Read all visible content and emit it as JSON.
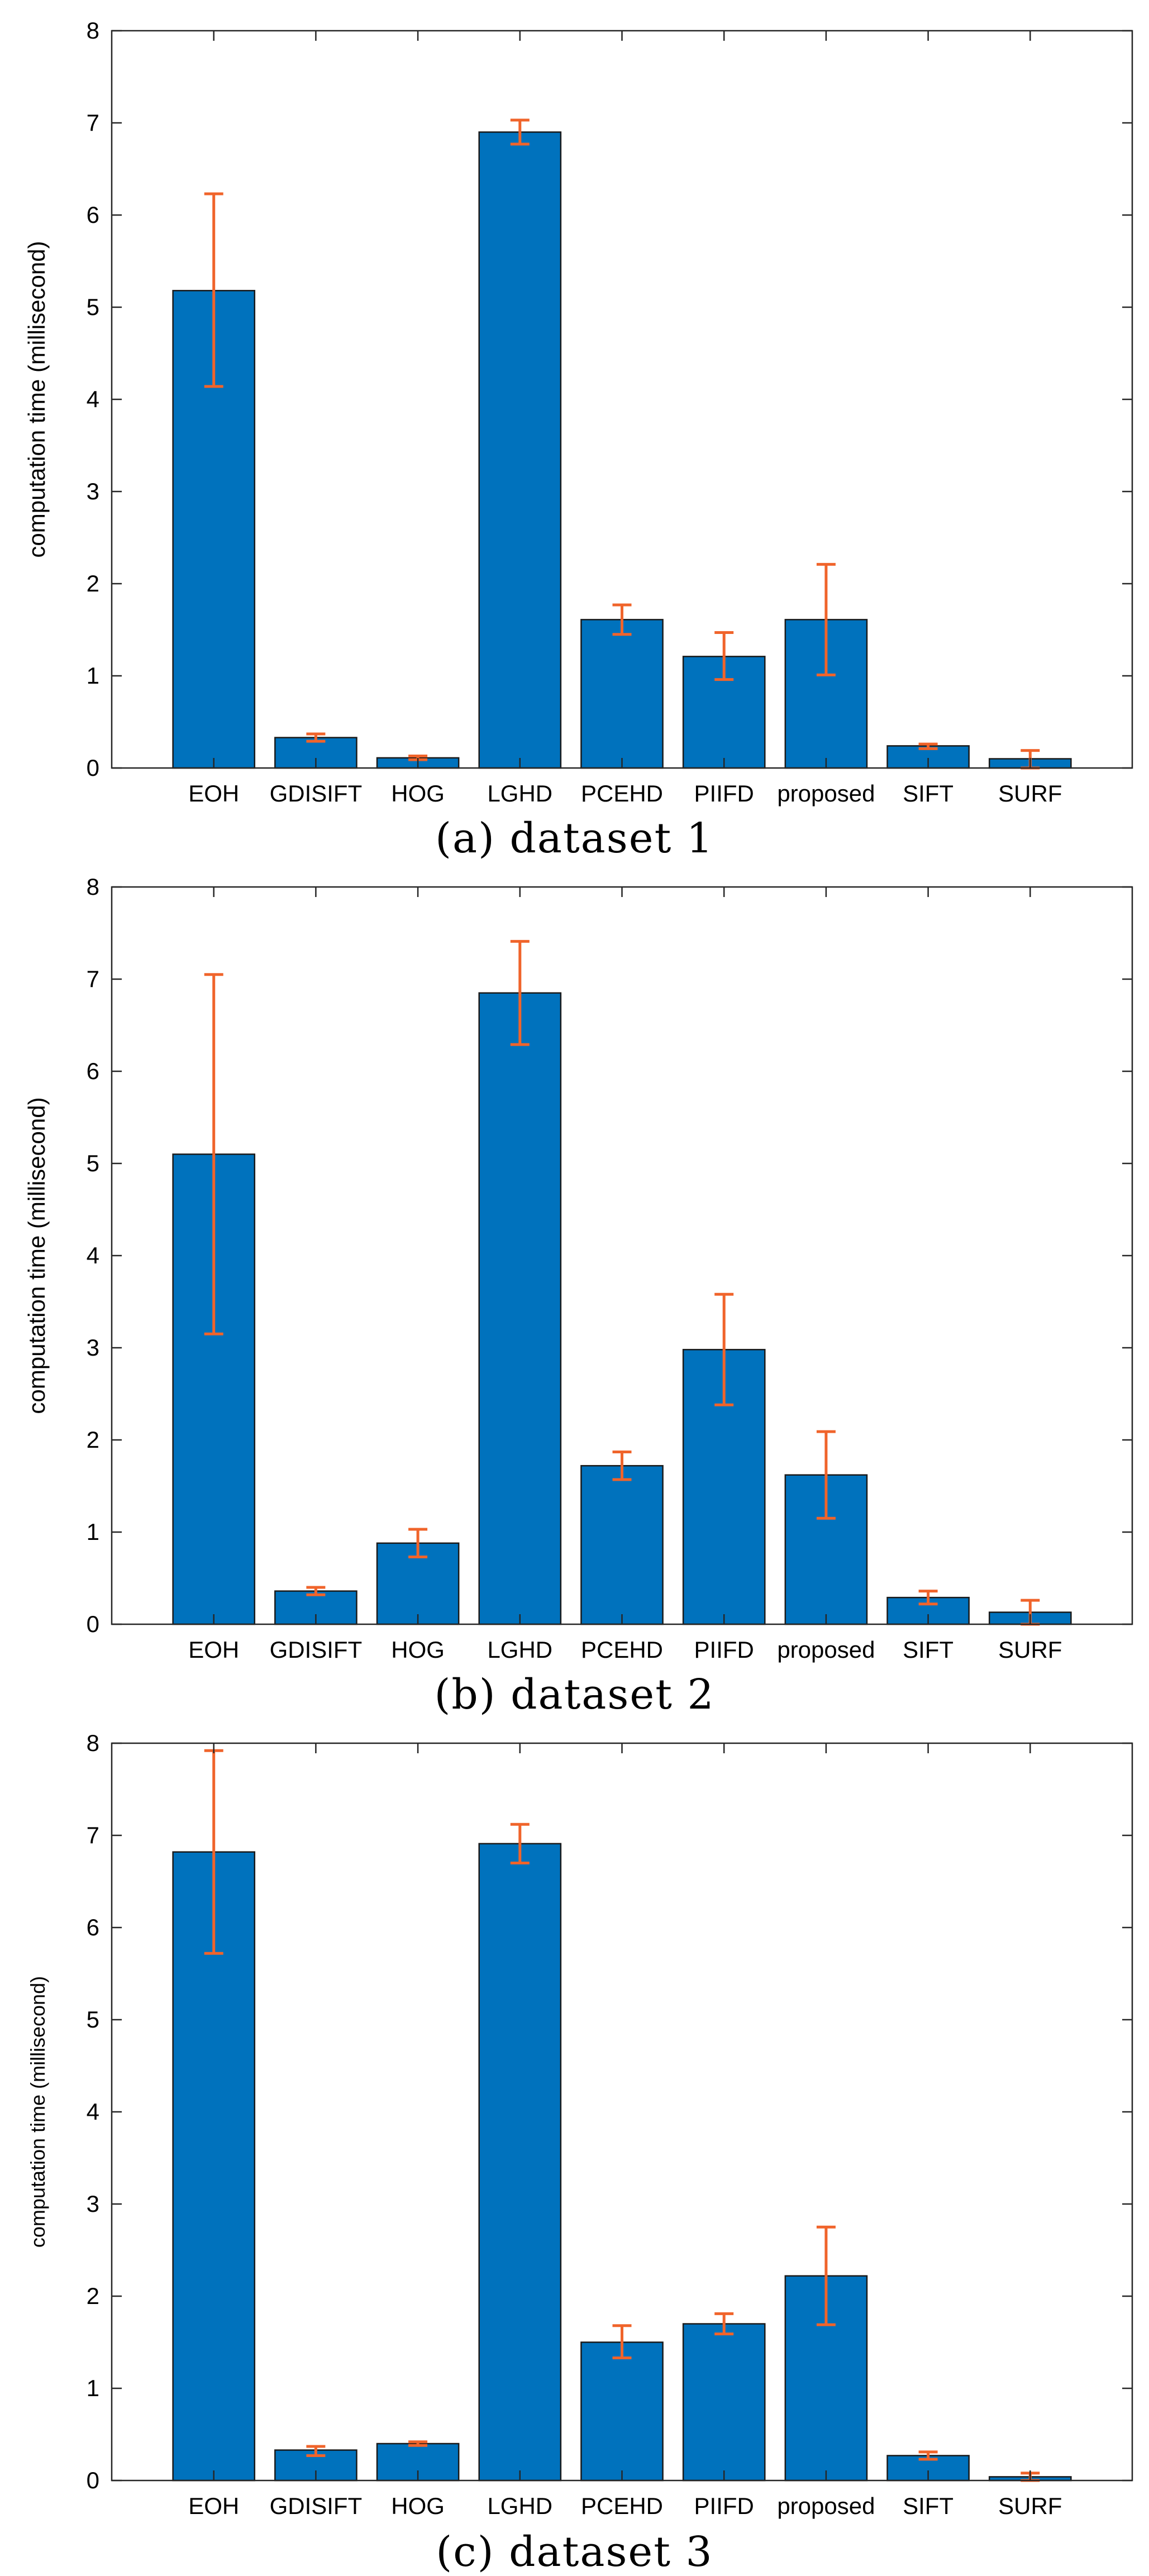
{
  "colors": {
    "bar": "#0072bd",
    "bar_edge": "#1a1a1a",
    "error": "#f0642b",
    "axis": "#262626"
  },
  "chart_data": [
    {
      "type": "bar",
      "title": "",
      "caption": "(a) dataset 1",
      "xlabel": "",
      "ylabel": "computation time (millisecond)",
      "ylim": [
        0,
        8
      ],
      "yticks": [
        0,
        1,
        2,
        3,
        4,
        5,
        6,
        7,
        8
      ],
      "grid": false,
      "categories": [
        "EOH",
        "GDISIFT",
        "HOG",
        "LGHD",
        "PCEHD",
        "PIIFD",
        "proposed",
        "SIFT",
        "SURF"
      ],
      "values": [
        5.18,
        0.33,
        0.11,
        6.9,
        1.61,
        1.21,
        1.61,
        0.24,
        0.1
      ],
      "error_low": [
        4.14,
        0.29,
        0.09,
        6.77,
        1.45,
        0.96,
        1.01,
        0.21,
        0.0
      ],
      "error_high": [
        6.23,
        0.37,
        0.13,
        7.03,
        1.77,
        1.47,
        2.21,
        0.26,
        0.19
      ]
    },
    {
      "type": "bar",
      "title": "",
      "caption": "(b) dataset 2",
      "xlabel": "",
      "ylabel": "computation time (millisecond)",
      "ylim": [
        0,
        8
      ],
      "yticks": [
        0,
        1,
        2,
        3,
        4,
        5,
        6,
        7,
        8
      ],
      "grid": false,
      "categories": [
        "EOH",
        "GDISIFT",
        "HOG",
        "LGHD",
        "PCEHD",
        "PIIFD",
        "proposed",
        "SIFT",
        "SURF"
      ],
      "values": [
        5.1,
        0.36,
        0.88,
        6.85,
        1.72,
        2.98,
        1.62,
        0.29,
        0.13
      ],
      "error_low": [
        3.15,
        0.32,
        0.73,
        6.29,
        1.57,
        2.38,
        1.15,
        0.22,
        0.0
      ],
      "error_high": [
        7.05,
        0.4,
        1.03,
        7.41,
        1.87,
        3.58,
        2.09,
        0.36,
        0.26
      ]
    },
    {
      "type": "bar",
      "title": "",
      "caption": "(c) dataset 3",
      "xlabel": "",
      "ylabel": "computation time (millisecond)",
      "ylim": [
        0,
        8
      ],
      "yticks": [
        0,
        1,
        2,
        3,
        4,
        5,
        6,
        7,
        8
      ],
      "grid": false,
      "categories": [
        "EOH",
        "GDISIFT",
        "HOG",
        "LGHD",
        "PCEHD",
        "PIIFD",
        "proposed",
        "SIFT",
        "SURF"
      ],
      "values": [
        6.82,
        0.33,
        0.4,
        6.91,
        1.5,
        1.7,
        2.22,
        0.27,
        0.04
      ],
      "error_low": [
        5.72,
        0.27,
        0.38,
        6.7,
        1.33,
        1.59,
        1.69,
        0.23,
        0.0
      ],
      "error_high": [
        7.92,
        0.37,
        0.42,
        7.12,
        1.68,
        1.81,
        2.75,
        0.31,
        0.08
      ]
    }
  ]
}
